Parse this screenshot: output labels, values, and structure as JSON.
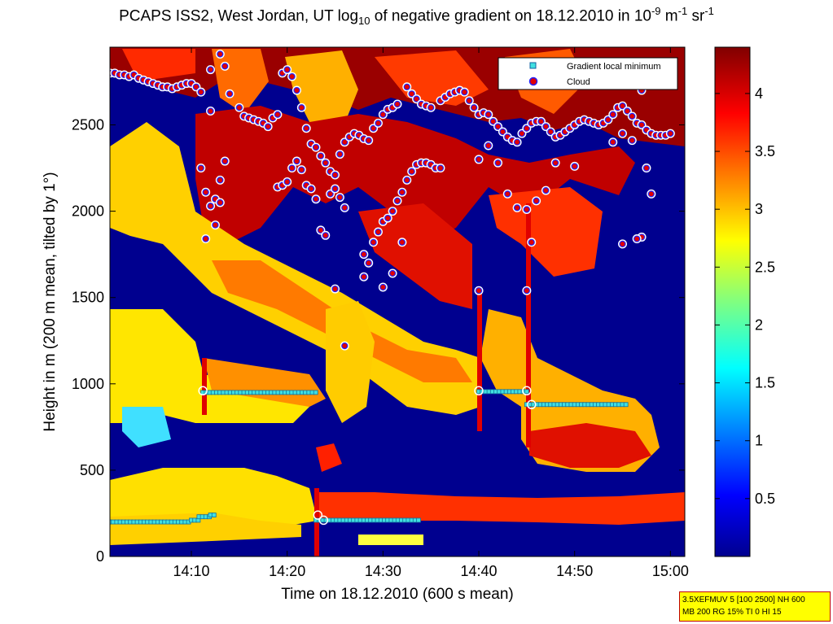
{
  "title": {
    "main": "PCAPS ISS2, West Jordan, UT log",
    "sub10": "10",
    "mid": " of negative gradient on 18.12.2010 in 10",
    "exp1": "-9",
    "unit1": " m",
    "exp2": "-1",
    "unit2": " sr",
    "exp3": "-1"
  },
  "stamp": {
    "line1": "3.5XEFMUV 5 [100 2500] NH 600",
    "line2": "MB 200 RG 15% TI 0 HI 15"
  },
  "colors": {
    "background_low": "#00008f",
    "mid": "#ffff00",
    "high": "#800000",
    "gradient_marker": "#40e0e0",
    "cloud_marker": "#e00000",
    "cloud_edge": "#2020ff"
  },
  "chart_data": {
    "type": "heatmap",
    "title": "PCAPS ISS2, West Jordan, UT log10 of negative gradient on 18.12.2010 in 10^-9 m^-1 sr^-1",
    "xlabel": "Time on 18.12.2010 (600 s mean)",
    "ylabel": "Height in m (200 m mean, tilted by 1°)",
    "xlim": [
      "14:01:30",
      "15:01:30"
    ],
    "ylim": [
      0,
      2950
    ],
    "x_ticks": [
      "14:10",
      "14:20",
      "14:30",
      "14:40",
      "14:50",
      "15:00"
    ],
    "y_ticks": [
      0,
      500,
      1000,
      1500,
      2000,
      2500
    ],
    "colorbar": {
      "colormap": "jet",
      "range": [
        0,
        4.4
      ],
      "ticks": [
        "0.5",
        "1",
        "1.5",
        "2",
        "2.5",
        "3",
        "3.5",
        "4"
      ]
    },
    "legend": {
      "placement": "top-right",
      "entries": [
        "Gradient local minimum",
        "Cloud"
      ]
    },
    "series": [
      {
        "name": "Gradient local minimum",
        "marker": "square",
        "segments": [
          {
            "x": [
              1.5,
              10
            ],
            "y": 200
          },
          {
            "x": [
              10,
              10.8
            ],
            "y": 210
          },
          {
            "x": [
              10.8,
              12
            ],
            "y": 230
          },
          {
            "x": [
              12,
              12.5
            ],
            "y": 240
          },
          {
            "x": [
              11.2,
              23
            ],
            "y": 950
          },
          {
            "x": [
              23,
              34
            ],
            "y": 210
          },
          {
            "x": [
              40,
              45
            ],
            "y": 955
          },
          {
            "x": [
              45,
              55.5
            ],
            "y": 880
          }
        ]
      },
      {
        "name": "Cloud",
        "marker": "circle",
        "points": [
          [
            1.5,
            2800
          ],
          [
            2,
            2800
          ],
          [
            2.5,
            2790
          ],
          [
            3,
            2790
          ],
          [
            3.5,
            2780
          ],
          [
            4,
            2790
          ],
          [
            4.5,
            2770
          ],
          [
            5,
            2760
          ],
          [
            5.5,
            2750
          ],
          [
            6,
            2740
          ],
          [
            6.5,
            2730
          ],
          [
            7,
            2720
          ],
          [
            7.5,
            2720
          ],
          [
            8,
            2710
          ],
          [
            8.5,
            2720
          ],
          [
            9,
            2730
          ],
          [
            9.5,
            2740
          ],
          [
            10,
            2740
          ],
          [
            10.5,
            2720
          ],
          [
            11,
            2690
          ],
          [
            12,
            2820
          ],
          [
            13.5,
            2840
          ],
          [
            14,
            2680
          ],
          [
            13,
            2910
          ],
          [
            15,
            2600
          ],
          [
            15.5,
            2550
          ],
          [
            16,
            2540
          ],
          [
            16.5,
            2530
          ],
          [
            17,
            2520
          ],
          [
            17.5,
            2510
          ],
          [
            18,
            2490
          ],
          [
            18.5,
            2540
          ],
          [
            19,
            2560
          ],
          [
            19.5,
            2800
          ],
          [
            20,
            2820
          ],
          [
            20.5,
            2780
          ],
          [
            21,
            2700
          ],
          [
            21.5,
            2600
          ],
          [
            22,
            2480
          ],
          [
            22.5,
            2390
          ],
          [
            23,
            2370
          ],
          [
            23.5,
            2320
          ],
          [
            24,
            2280
          ],
          [
            24.5,
            2230
          ],
          [
            25,
            2210
          ],
          [
            25.5,
            2330
          ],
          [
            26,
            2400
          ],
          [
            26.5,
            2430
          ],
          [
            27,
            2450
          ],
          [
            27.5,
            2440
          ],
          [
            28,
            2420
          ],
          [
            28.5,
            2410
          ],
          [
            29,
            2480
          ],
          [
            29.5,
            2510
          ],
          [
            30,
            2560
          ],
          [
            30.5,
            2590
          ],
          [
            31,
            2600
          ],
          [
            31.5,
            2620
          ],
          [
            11,
            2250
          ],
          [
            11.5,
            2110
          ],
          [
            12,
            2030
          ],
          [
            12.5,
            2070
          ],
          [
            13,
            2180
          ],
          [
            13.5,
            2290
          ],
          [
            13,
            2050
          ],
          [
            12.5,
            1920
          ],
          [
            11.5,
            1840
          ],
          [
            12,
            2580
          ],
          [
            19,
            2140
          ],
          [
            19.5,
            2150
          ],
          [
            20,
            2170
          ],
          [
            20.5,
            2250
          ],
          [
            21,
            2290
          ],
          [
            21.5,
            2240
          ],
          [
            22,
            2150
          ],
          [
            22.5,
            2130
          ],
          [
            23,
            2070
          ],
          [
            23.5,
            1890
          ],
          [
            24,
            1860
          ],
          [
            24.5,
            2100
          ],
          [
            25,
            2130
          ],
          [
            25.5,
            2080
          ],
          [
            26,
            2020
          ],
          [
            25,
            1550
          ],
          [
            26,
            1220
          ],
          [
            28,
            1620
          ],
          [
            28.5,
            1700
          ],
          [
            28,
            1750
          ],
          [
            29,
            1820
          ],
          [
            29.5,
            1880
          ],
          [
            30,
            1940
          ],
          [
            30.5,
            1960
          ],
          [
            31,
            2000
          ],
          [
            31.5,
            2060
          ],
          [
            32,
            2110
          ],
          [
            32.5,
            2180
          ],
          [
            33,
            2230
          ],
          [
            33.5,
            2270
          ],
          [
            34,
            2280
          ],
          [
            34.5,
            2280
          ],
          [
            35,
            2270
          ],
          [
            35.5,
            2250
          ],
          [
            36,
            2250
          ],
          [
            32,
            1820
          ],
          [
            31,
            1640
          ],
          [
            30,
            1560
          ],
          [
            32.5,
            2720
          ],
          [
            33,
            2680
          ],
          [
            33.5,
            2650
          ],
          [
            34,
            2620
          ],
          [
            34.5,
            2610
          ],
          [
            35,
            2600
          ],
          [
            36,
            2640
          ],
          [
            36.5,
            2660
          ],
          [
            37,
            2680
          ],
          [
            37.5,
            2690
          ],
          [
            38,
            2700
          ],
          [
            38.5,
            2690
          ],
          [
            39,
            2640
          ],
          [
            39.5,
            2600
          ],
          [
            40,
            2560
          ],
          [
            40.5,
            2570
          ],
          [
            41,
            2560
          ],
          [
            41.5,
            2520
          ],
          [
            42,
            2490
          ],
          [
            42.5,
            2460
          ],
          [
            43,
            2430
          ],
          [
            43.5,
            2410
          ],
          [
            44,
            2400
          ],
          [
            44.5,
            2450
          ],
          [
            45,
            2480
          ],
          [
            45.5,
            2510
          ],
          [
            46,
            2520
          ],
          [
            46.5,
            2520
          ],
          [
            47,
            2490
          ],
          [
            47.5,
            2460
          ],
          [
            48,
            2430
          ],
          [
            48.5,
            2440
          ],
          [
            49,
            2460
          ],
          [
            49.5,
            2480
          ],
          [
            50,
            2500
          ],
          [
            50.5,
            2520
          ],
          [
            51,
            2530
          ],
          [
            51.5,
            2520
          ],
          [
            52,
            2510
          ],
          [
            52.5,
            2500
          ],
          [
            53,
            2510
          ],
          [
            53.5,
            2530
          ],
          [
            54,
            2560
          ],
          [
            54.5,
            2600
          ],
          [
            55,
            2610
          ],
          [
            55.5,
            2580
          ],
          [
            56,
            2550
          ],
          [
            56.5,
            2510
          ],
          [
            57,
            2500
          ],
          [
            57.5,
            2470
          ],
          [
            58,
            2450
          ],
          [
            58.5,
            2440
          ],
          [
            59,
            2440
          ],
          [
            59.5,
            2440
          ],
          [
            60,
            2450
          ],
          [
            40,
            2300
          ],
          [
            41,
            2380
          ],
          [
            42,
            2280
          ],
          [
            43,
            2100
          ],
          [
            44,
            2020
          ],
          [
            45,
            2010
          ],
          [
            45.5,
            1820
          ],
          [
            45,
            1540
          ],
          [
            40,
            1540
          ],
          [
            48,
            2280
          ],
          [
            50,
            2260
          ],
          [
            54,
            2400
          ],
          [
            55,
            2450
          ],
          [
            56,
            2410
          ],
          [
            57,
            2700
          ],
          [
            57.5,
            2250
          ],
          [
            58,
            2100
          ],
          [
            57,
            1850
          ],
          [
            56.5,
            1840
          ],
          [
            55,
            1810
          ],
          [
            46,
            2060
          ],
          [
            47,
            2120
          ]
        ]
      }
    ],
    "highlighted_points": [
      [
        11.2,
        960
      ],
      [
        23.2,
        240
      ],
      [
        23.8,
        210
      ],
      [
        40,
        960
      ],
      [
        45,
        960
      ],
      [
        45.5,
        880
      ]
    ]
  }
}
